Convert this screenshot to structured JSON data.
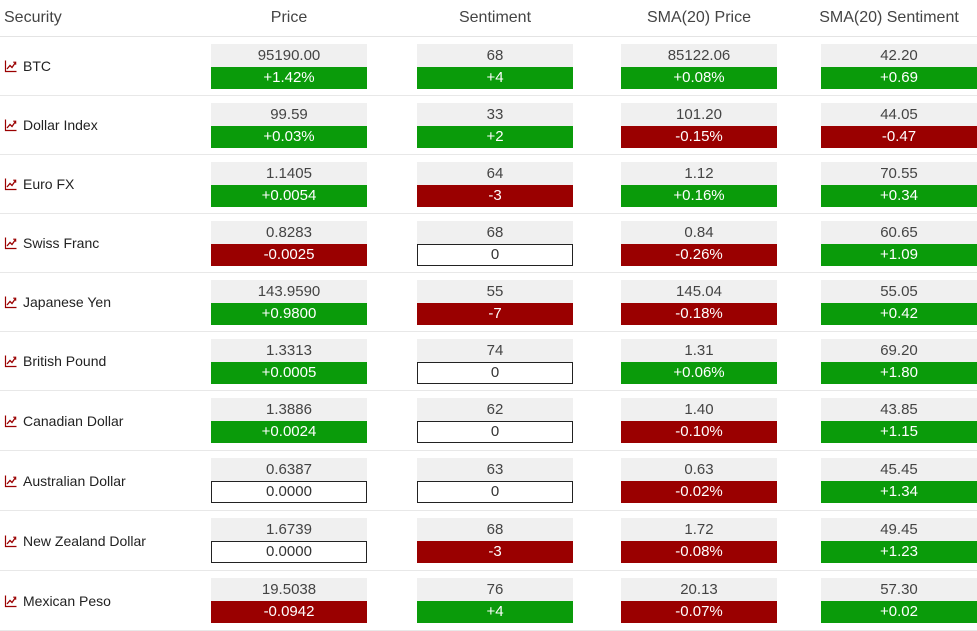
{
  "headers": {
    "security": "Security",
    "price": "Price",
    "sentiment": "Sentiment",
    "sma_price": "SMA(20) Price",
    "sma_sentiment": "SMA(20) Sentiment"
  },
  "colors": {
    "positive": "#0a9b0a",
    "negative": "#9a0000",
    "value_bg": "#f0f0f0"
  },
  "rows": [
    {
      "name": "BTC",
      "icon": "line-chart-icon",
      "price": {
        "value": "95190.00",
        "change": "+1.42%",
        "dir": "pos"
      },
      "sentiment": {
        "value": "68",
        "change": "+4",
        "dir": "pos"
      },
      "sma_price": {
        "value": "85122.06",
        "change": "+0.08%",
        "dir": "pos"
      },
      "sma_sentiment": {
        "value": "42.20",
        "change": "+0.69",
        "dir": "pos"
      }
    },
    {
      "name": "Dollar Index",
      "icon": "line-chart-icon",
      "price": {
        "value": "99.59",
        "change": "+0.03%",
        "dir": "pos"
      },
      "sentiment": {
        "value": "33",
        "change": "+2",
        "dir": "pos"
      },
      "sma_price": {
        "value": "101.20",
        "change": "-0.15%",
        "dir": "neg"
      },
      "sma_sentiment": {
        "value": "44.05",
        "change": "-0.47",
        "dir": "neg"
      }
    },
    {
      "name": "Euro FX",
      "icon": "line-chart-icon",
      "price": {
        "value": "1.1405",
        "change": "+0.0054",
        "dir": "pos"
      },
      "sentiment": {
        "value": "64",
        "change": "-3",
        "dir": "neg"
      },
      "sma_price": {
        "value": "1.12",
        "change": "+0.16%",
        "dir": "pos"
      },
      "sma_sentiment": {
        "value": "70.55",
        "change": "+0.34",
        "dir": "pos"
      }
    },
    {
      "name": "Swiss Franc",
      "icon": "line-chart-icon",
      "price": {
        "value": "0.8283",
        "change": "-0.0025",
        "dir": "neg"
      },
      "sentiment": {
        "value": "68",
        "change": "0",
        "dir": "zero"
      },
      "sma_price": {
        "value": "0.84",
        "change": "-0.26%",
        "dir": "neg"
      },
      "sma_sentiment": {
        "value": "60.65",
        "change": "+1.09",
        "dir": "pos"
      }
    },
    {
      "name": "Japanese Yen",
      "icon": "line-chart-icon",
      "price": {
        "value": "143.9590",
        "change": "+0.9800",
        "dir": "pos"
      },
      "sentiment": {
        "value": "55",
        "change": "-7",
        "dir": "neg"
      },
      "sma_price": {
        "value": "145.04",
        "change": "-0.18%",
        "dir": "neg"
      },
      "sma_sentiment": {
        "value": "55.05",
        "change": "+0.42",
        "dir": "pos"
      }
    },
    {
      "name": "British Pound",
      "icon": "line-chart-icon",
      "price": {
        "value": "1.3313",
        "change": "+0.0005",
        "dir": "pos"
      },
      "sentiment": {
        "value": "74",
        "change": "0",
        "dir": "zero"
      },
      "sma_price": {
        "value": "1.31",
        "change": "+0.06%",
        "dir": "pos"
      },
      "sma_sentiment": {
        "value": "69.20",
        "change": "+1.80",
        "dir": "pos"
      }
    },
    {
      "name": "Canadian Dollar",
      "icon": "line-chart-icon",
      "price": {
        "value": "1.3886",
        "change": "+0.0024",
        "dir": "pos"
      },
      "sentiment": {
        "value": "62",
        "change": "0",
        "dir": "zero"
      },
      "sma_price": {
        "value": "1.40",
        "change": "-0.10%",
        "dir": "neg"
      },
      "sma_sentiment": {
        "value": "43.85",
        "change": "+1.15",
        "dir": "pos"
      }
    },
    {
      "name": "Australian Dollar",
      "icon": "line-chart-icon",
      "price": {
        "value": "0.6387",
        "change": "0.0000",
        "dir": "zero"
      },
      "sentiment": {
        "value": "63",
        "change": "0",
        "dir": "zero"
      },
      "sma_price": {
        "value": "0.63",
        "change": "-0.02%",
        "dir": "neg"
      },
      "sma_sentiment": {
        "value": "45.45",
        "change": "+1.34",
        "dir": "pos"
      }
    },
    {
      "name": "New Zealand Dollar",
      "icon": "line-chart-icon",
      "price": {
        "value": "1.6739",
        "change": "0.0000",
        "dir": "zero"
      },
      "sentiment": {
        "value": "68",
        "change": "-3",
        "dir": "neg"
      },
      "sma_price": {
        "value": "1.72",
        "change": "-0.08%",
        "dir": "neg"
      },
      "sma_sentiment": {
        "value": "49.45",
        "change": "+1.23",
        "dir": "pos"
      }
    },
    {
      "name": "Mexican Peso",
      "icon": "line-chart-icon",
      "price": {
        "value": "19.5038",
        "change": "-0.0942",
        "dir": "neg"
      },
      "sentiment": {
        "value": "76",
        "change": "+4",
        "dir": "pos"
      },
      "sma_price": {
        "value": "20.13",
        "change": "-0.07%",
        "dir": "neg"
      },
      "sma_sentiment": {
        "value": "57.30",
        "change": "+0.02",
        "dir": "pos"
      }
    }
  ]
}
